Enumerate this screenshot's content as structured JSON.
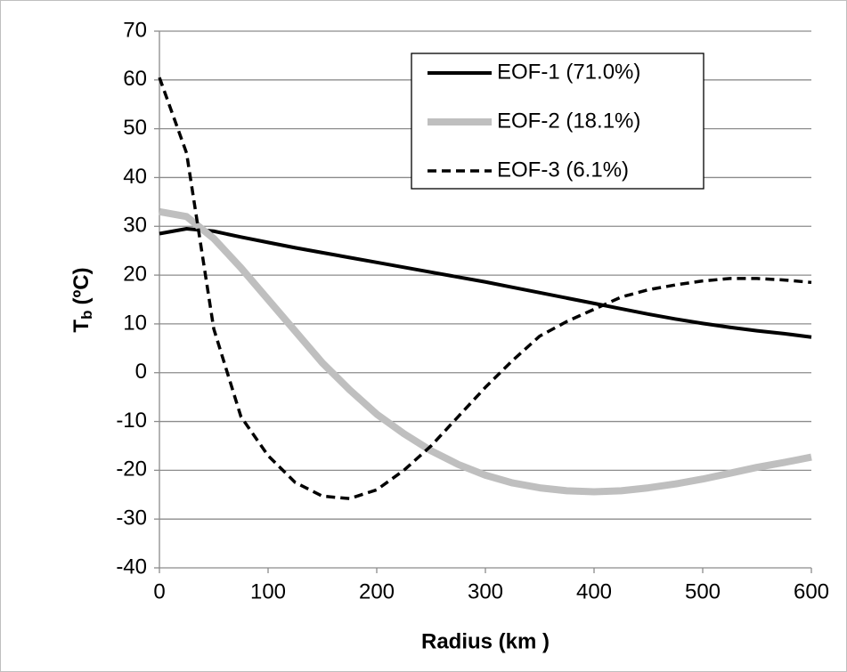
{
  "chart_data": {
    "type": "line",
    "xlabel": "Radius (km )",
    "ylabel": {
      "symbol": "T",
      "subscript": "b",
      "unit": "(ºC)"
    },
    "x": [
      0,
      25,
      50,
      75,
      100,
      125,
      150,
      175,
      200,
      225,
      250,
      275,
      300,
      325,
      350,
      375,
      400,
      425,
      450,
      475,
      500,
      525,
      550,
      575,
      600
    ],
    "series": [
      {
        "name": "EOF-1 (71.0%)",
        "color": "#000000",
        "style": "solid",
        "width": 4,
        "values": [
          28.5,
          29.5,
          29,
          27.8,
          26.7,
          25.6,
          24.6,
          23.6,
          22.6,
          21.6,
          20.6,
          19.6,
          18.6,
          17.5,
          16.4,
          15.3,
          14.2,
          13.1,
          12,
          11,
          10.1,
          9.3,
          8.6,
          8,
          7.3
        ]
      },
      {
        "name": "EOF-2 (18.1%)",
        "color": "#bfbfbf",
        "style": "solid",
        "width": 8,
        "values": [
          33,
          32,
          27.5,
          21.5,
          15,
          8.5,
          2,
          -3.5,
          -8.5,
          -12.5,
          -16,
          -18.8,
          -21,
          -22.6,
          -23.6,
          -24.2,
          -24.4,
          -24.2,
          -23.6,
          -22.8,
          -21.8,
          -20.6,
          -19.4,
          -18.4,
          -17.3
        ]
      },
      {
        "name": "EOF-3 (6.1%)",
        "color": "#000000",
        "style": "dashed",
        "width": 3.5,
        "values": [
          60.5,
          45,
          9,
          -9,
          -17,
          -22.5,
          -25.3,
          -25.8,
          -24,
          -20,
          -15,
          -9,
          -3,
          2.5,
          7.5,
          10.5,
          13,
          15.5,
          17,
          18,
          18.8,
          19.3,
          19.3,
          19,
          18.5
        ]
      }
    ],
    "xlim": [
      0,
      600
    ],
    "xticks": [
      0,
      100,
      200,
      300,
      400,
      500,
      600
    ],
    "ylim": [
      -40,
      70
    ],
    "yticks": [
      -40,
      -30,
      -20,
      -10,
      0,
      10,
      20,
      30,
      40,
      50,
      60,
      70
    ],
    "grid": true,
    "legend": "top-right"
  }
}
